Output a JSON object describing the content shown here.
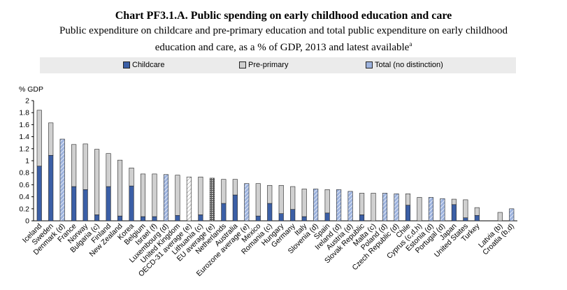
{
  "header": {
    "title": "Chart PF3.1.A. Public spending on early childhood education and care",
    "subtitle_line1": "Public expenditure on childcare and pre-primary education and total public expenditure on early childhood",
    "subtitle_line2": "education and care, as a % of GDP, 2013 and latest available",
    "subtitle_sup": "a"
  },
  "colors": {
    "childcare": "#3b5fa6",
    "pre_primary": "#d0d0d0",
    "total": "#9db3de",
    "outline": "#222222",
    "legend_bg": "#ebebeb"
  },
  "chart_data": {
    "type": "bar",
    "stacked": true,
    "ylabel": "% GDP",
    "ylim": [
      0,
      2
    ],
    "yticks": [
      0,
      0.2,
      0.4,
      0.6,
      0.8,
      1,
      1.2,
      1.4,
      1.6,
      1.8,
      2
    ],
    "ytick_labels": [
      "0",
      "0.2",
      "0.4",
      "0.6",
      "0.8",
      "1",
      "1.2",
      "1.4",
      "1.6",
      "1.8",
      "2"
    ],
    "legend": [
      "Childcare",
      "Pre-primary",
      "Total (no distinction)"
    ],
    "legend_position": "top",
    "grid": false,
    "categories": [
      "Iceland",
      "Sweden",
      "Denmark (d)",
      "France",
      "Norway",
      "Bulgaria (c)",
      "Finland",
      "New Zealand",
      "Korea",
      "Belgium",
      "Israel (f)",
      "Luxembourg (d)",
      "United Kingdom",
      "OECD-31 average (e)",
      "Lithuania (c)",
      "EU average (e)",
      "Netherlands",
      "Australia",
      "Eurozone average (e)",
      "Mexico",
      "Romania (c)",
      "Hungary",
      "Germany",
      "Italy",
      "Slovenia (d)",
      "Spain",
      "Ireland (d)",
      "Austria (d)",
      "Slovak Republic",
      "Malta (c)",
      "Poland (d)",
      "Czech Republic (d)",
      "Chile",
      "Cyprus (c,d,h)",
      "Estonia (d)",
      "Portugal (d)",
      "Japan",
      "United States",
      "Turkey",
      "",
      "Latvia (b)",
      "Croatia (b,d)"
    ],
    "series": [
      {
        "name": "Childcare",
        "values": [
          0.91,
          1.09,
          0,
          0.57,
          0.52,
          0.1,
          0.57,
          0.08,
          0.58,
          0.07,
          0.07,
          0,
          0.09,
          0,
          0.1,
          0,
          0.29,
          0.43,
          0,
          0.08,
          0.29,
          0.12,
          0.19,
          0.07,
          0,
          0.13,
          0,
          0,
          0.1,
          0,
          0,
          0,
          0.26,
          0,
          0,
          0,
          0.27,
          0.05,
          0.09,
          0,
          0,
          0
        ]
      },
      {
        "name": "Pre-primary",
        "values": [
          0.93,
          0.54,
          0,
          0.7,
          0.76,
          1.09,
          0.55,
          0.93,
          0.3,
          0.71,
          0.71,
          0,
          0.67,
          0,
          0.63,
          0,
          0.4,
          0.26,
          0,
          0.54,
          0.3,
          0.47,
          0.38,
          0.46,
          0,
          0.39,
          0,
          0,
          0.36,
          0.46,
          0,
          0,
          0.19,
          0.39,
          0,
          0,
          0.09,
          0.3,
          0.13,
          0,
          0.14,
          0
        ]
      },
      {
        "name": "Total (no distinction)",
        "values": [
          0,
          0,
          1.36,
          0,
          0,
          0,
          0,
          0,
          0,
          0,
          0,
          0.77,
          0,
          0.73,
          0,
          0.71,
          0,
          0,
          0.62,
          0,
          0,
          0,
          0,
          0,
          0.53,
          0,
          0.52,
          0.49,
          0,
          0,
          0.46,
          0.45,
          0,
          0,
          0.39,
          0.37,
          0,
          0,
          0,
          0,
          0,
          0.2
        ]
      }
    ],
    "average_categories": {
      "OECD-31 average (e)": "white",
      "EU average (e)": "dark"
    }
  }
}
